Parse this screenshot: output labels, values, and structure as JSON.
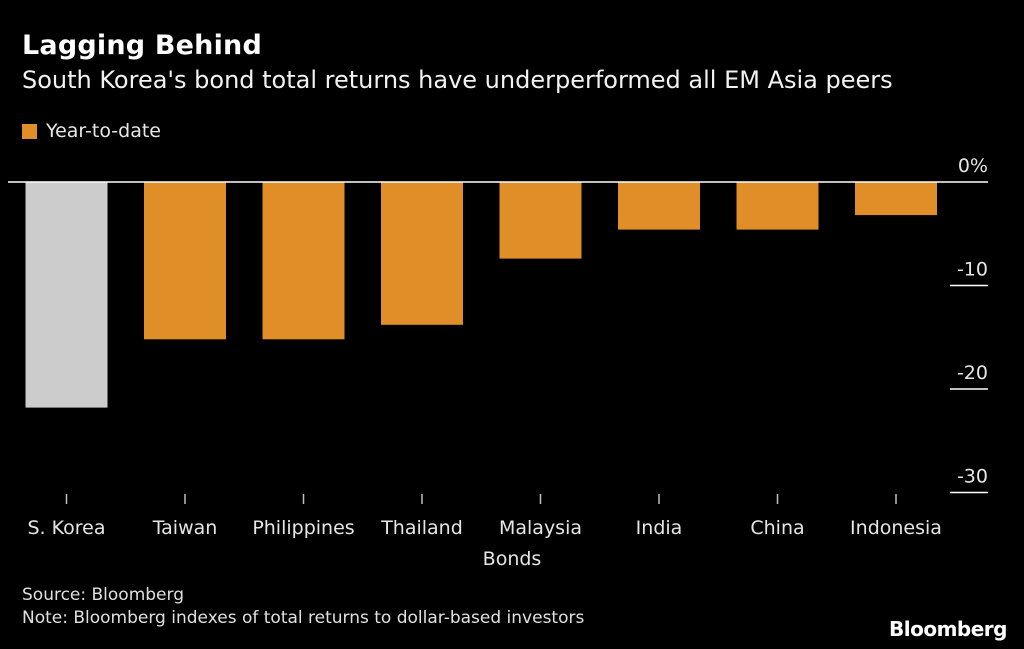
{
  "header": {
    "title": "Lagging Behind",
    "subtitle": "South Korea's bond total returns have underperformed all EM Asia peers"
  },
  "legend": {
    "label": "Year-to-date"
  },
  "colors": {
    "background": "#000000",
    "series": "#e08e28",
    "highlight": "#cccccc",
    "axis": "#ffffff"
  },
  "chart_data": {
    "type": "bar",
    "title": "Lagging Behind",
    "subtitle": "South Korea's bond total returns have underperformed all EM Asia peers",
    "xlabel": "Bonds",
    "ylabel": "",
    "categories": [
      "S. Korea",
      "Taiwan",
      "Philippines",
      "Thailand",
      "Malaysia",
      "India",
      "China",
      "Indonesia"
    ],
    "series": [
      {
        "name": "Year-to-date",
        "values": [
          -21.8,
          -15.2,
          -15.2,
          -13.8,
          -7.4,
          -4.6,
          -4.6,
          -3.2
        ]
      }
    ],
    "highlight_category": "S. Korea",
    "ylim": [
      -31,
      0
    ],
    "yticks": [
      0,
      -10,
      -20,
      -30
    ],
    "ytick_labels": [
      "0%",
      "-10",
      "-20",
      "-30"
    ],
    "legend_position": "top-left",
    "grid": false
  },
  "footer": {
    "source": "Source: Bloomberg",
    "note": "Note: Bloomberg indexes of total returns to dollar-based investors",
    "brand": "Bloomberg"
  }
}
